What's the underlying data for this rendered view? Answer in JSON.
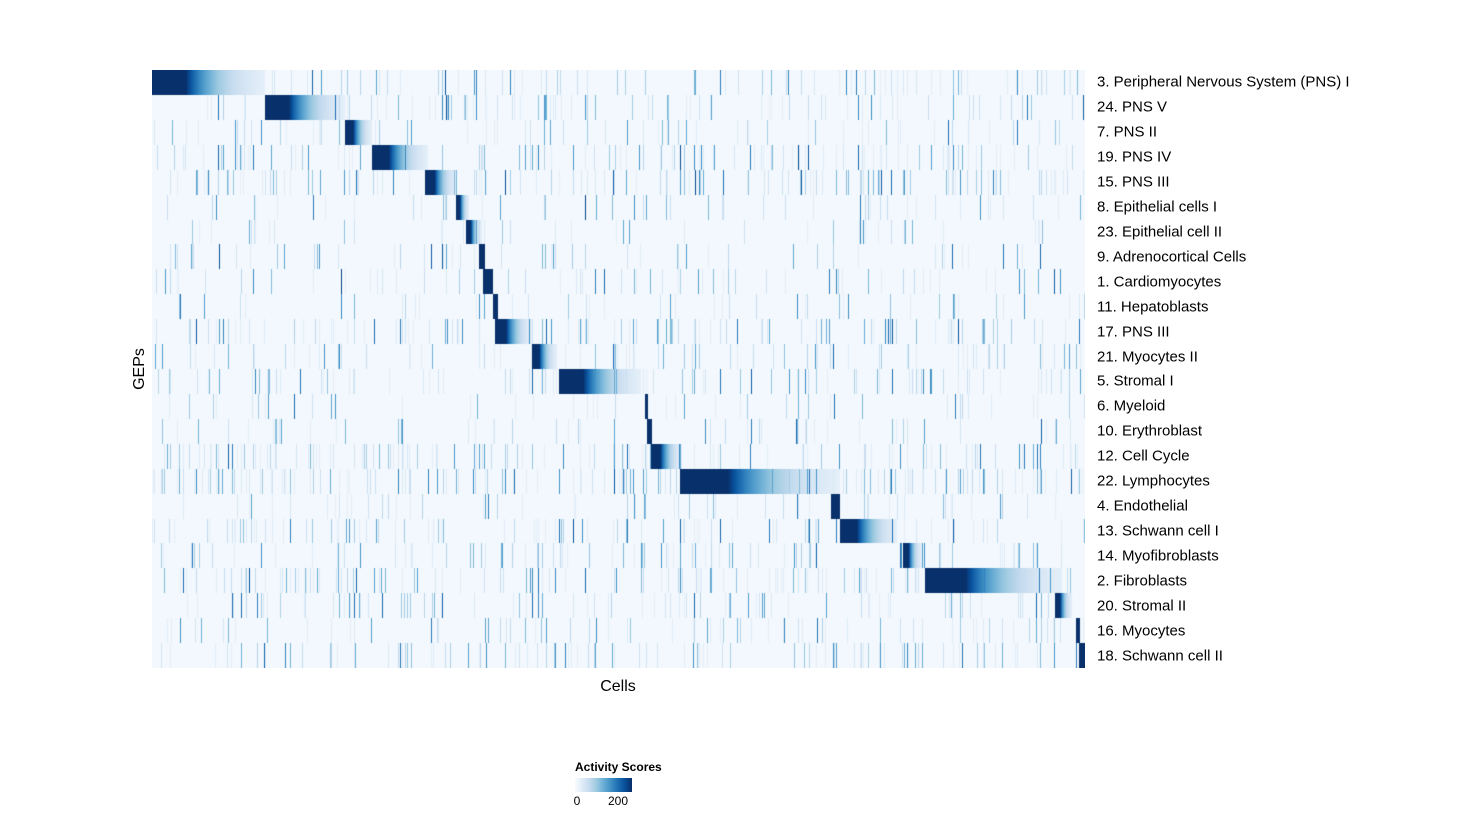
{
  "chart_data": {
    "type": "heatmap",
    "title": "",
    "xlabel": "Cells",
    "ylabel": "GEPs",
    "x_axis": "cells (sorted by assigned GEP, tick labels hidden)",
    "value_range": [
      0,
      200
    ],
    "background_value": 5,
    "colormap": "Blues",
    "colormap_stops": [
      [
        247,
        251,
        255
      ],
      [
        222,
        235,
        247
      ],
      [
        198,
        219,
        239
      ],
      [
        158,
        202,
        225
      ],
      [
        107,
        174,
        214
      ],
      [
        66,
        146,
        198
      ],
      [
        33,
        113,
        181
      ],
      [
        8,
        81,
        156
      ],
      [
        8,
        48,
        107
      ]
    ],
    "colorbar": {
      "label": "Activity Scores",
      "min": 0,
      "max": 200,
      "min_label": "0",
      "max_label": "200"
    },
    "rows": [
      {
        "label": "3. Peripheral Nervous System (PNS) I",
        "block_start": 0.0,
        "block_end": 0.121,
        "peak": 200,
        "noise": 0.5
      },
      {
        "label": "24. PNS V",
        "block_start": 0.121,
        "block_end": 0.207,
        "peak": 200,
        "noise": 0.4
      },
      {
        "label": "7. PNS II",
        "block_start": 0.207,
        "block_end": 0.236,
        "peak": 200,
        "noise": 0.3
      },
      {
        "label": "19. PNS IV",
        "block_start": 0.236,
        "block_end": 0.296,
        "peak": 200,
        "noise": 0.6
      },
      {
        "label": "15. PNS III",
        "block_start": 0.293,
        "block_end": 0.326,
        "peak": 200,
        "noise": 0.7
      },
      {
        "label": "8. Epithelial cells I",
        "block_start": 0.326,
        "block_end": 0.34,
        "peak": 200,
        "noise": 0.2
      },
      {
        "label": "23. Epithelial cell II",
        "block_start": 0.337,
        "block_end": 0.353,
        "peak": 200,
        "noise": 0.2
      },
      {
        "label": "9. Adrenocortical Cells",
        "block_start": 0.35,
        "block_end": 0.357,
        "peak": 200,
        "noise": 0.15
      },
      {
        "label": "1. Cardiomyocytes",
        "block_start": 0.355,
        "block_end": 0.366,
        "peak": 200,
        "noise": 0.2
      },
      {
        "label": "11. Hepatoblasts",
        "block_start": 0.366,
        "block_end": 0.371,
        "peak": 200,
        "noise": 0.15
      },
      {
        "label": "17. PNS III",
        "block_start": 0.368,
        "block_end": 0.407,
        "peak": 200,
        "noise": 0.6
      },
      {
        "label": "21. Myocytes II",
        "block_start": 0.407,
        "block_end": 0.434,
        "peak": 200,
        "noise": 0.35
      },
      {
        "label": "5. Stromal I",
        "block_start": 0.436,
        "block_end": 0.524,
        "peak": 200,
        "noise": 0.5
      },
      {
        "label": "6. Myeloid",
        "block_start": 0.528,
        "block_end": 0.532,
        "peak": 200,
        "noise": 0.2
      },
      {
        "label": "10. Erythroblast",
        "block_start": 0.531,
        "block_end": 0.536,
        "peak": 200,
        "noise": 0.25
      },
      {
        "label": "12. Cell Cycle",
        "block_start": 0.535,
        "block_end": 0.568,
        "peak": 200,
        "noise": 0.7
      },
      {
        "label": "22. Lymphocytes",
        "block_start": 0.566,
        "block_end": 0.737,
        "peak": 200,
        "noise": 0.8
      },
      {
        "label": "4. Endothelial",
        "block_start": 0.728,
        "block_end": 0.737,
        "peak": 200,
        "noise": 0.2
      },
      {
        "label": "13. Schwann cell I",
        "block_start": 0.737,
        "block_end": 0.799,
        "peak": 200,
        "noise": 0.5
      },
      {
        "label": "14. Myofibroblasts",
        "block_start": 0.805,
        "block_end": 0.825,
        "peak": 200,
        "noise": 0.3
      },
      {
        "label": "2. Fibroblasts",
        "block_start": 0.828,
        "block_end": 0.975,
        "peak": 200,
        "noise": 0.7
      },
      {
        "label": "20. Stromal II",
        "block_start": 0.968,
        "block_end": 0.986,
        "peak": 200,
        "noise": 0.45
      },
      {
        "label": "16. Myocytes",
        "block_start": 0.99,
        "block_end": 0.995,
        "peak": 200,
        "noise": 0.3
      },
      {
        "label": "18. Schwann cell II",
        "block_start": 0.994,
        "block_end": 1.0,
        "peak": 200,
        "noise": 0.5
      }
    ]
  }
}
